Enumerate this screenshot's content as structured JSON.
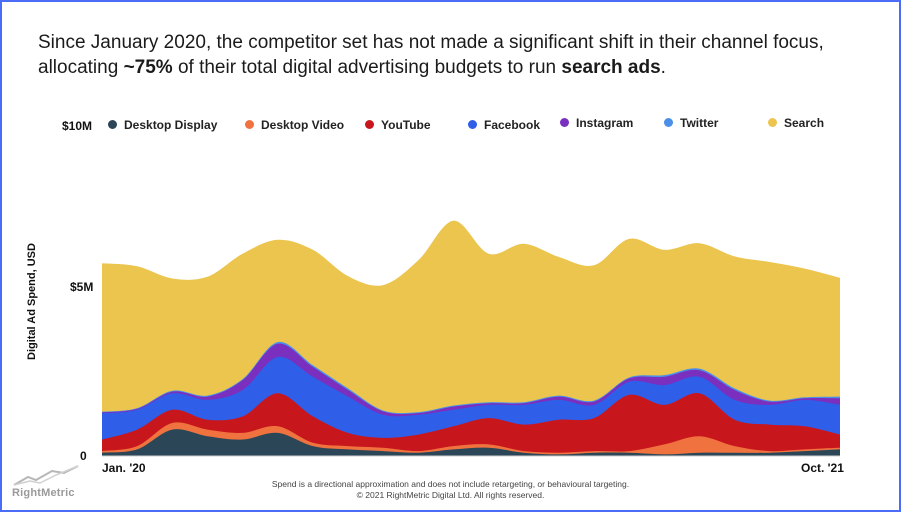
{
  "headline": {
    "part1": "Since January 2020, the competitor set has not made a significant shift in their channel focus, allocating ",
    "bold1": "~75%",
    "part2": " of their total digital advertising budgets to run ",
    "bold2": "search ads",
    "part3": "."
  },
  "footer": {
    "note": "Spend is a directional approximation and does not include retargeting, or behavioural targeting.",
    "copyright": "© 2021 RightMetric Digital Ltd. All rights reserved."
  },
  "brand": {
    "name": "RightMetric"
  },
  "chart_data": {
    "type": "area",
    "stacked": true,
    "smooth": true,
    "ylabel": "Digital Ad Spend, USD",
    "y_ticks": [
      "0",
      "$5M",
      "$10M"
    ],
    "y_tick_values": [
      0,
      5,
      10
    ],
    "ylim": [
      0,
      10
    ],
    "y_unit": "$M",
    "x_tick_labels": [
      "Jan. '20",
      "Oct. '21"
    ],
    "x": [
      "2020-01",
      "2020-02",
      "2020-03",
      "2020-04",
      "2020-05",
      "2020-06",
      "2020-07",
      "2020-08",
      "2020-09",
      "2020-10",
      "2020-11",
      "2020-12",
      "2021-01",
      "2021-02",
      "2021-03",
      "2021-04",
      "2021-05",
      "2021-06",
      "2021-07",
      "2021-08",
      "2021-09",
      "2021-10"
    ],
    "legend_position": "top",
    "series": [
      {
        "name": "Desktop Display",
        "color": "#2b4657",
        "values": [
          0.1,
          0.2,
          0.8,
          0.6,
          0.5,
          0.7,
          0.3,
          0.2,
          0.15,
          0.1,
          0.2,
          0.25,
          0.1,
          0.05,
          0.1,
          0.1,
          0.05,
          0.1,
          0.1,
          0.1,
          0.15,
          0.2
        ]
      },
      {
        "name": "Desktop Video",
        "color": "#f0733f",
        "values": [
          0.05,
          0.1,
          0.2,
          0.2,
          0.2,
          0.2,
          0.1,
          0.1,
          0.1,
          0.05,
          0.1,
          0.1,
          0.05,
          0.05,
          0.05,
          0.05,
          0.3,
          0.5,
          0.2,
          0.05,
          0.05,
          0.05
        ]
      },
      {
        "name": "YouTube",
        "color": "#c8161d",
        "values": [
          0.35,
          0.5,
          0.4,
          0.3,
          0.5,
          1.0,
          0.8,
          0.4,
          0.3,
          0.5,
          0.6,
          0.8,
          0.8,
          1.0,
          1.0,
          1.7,
          1.2,
          1.3,
          0.8,
          0.8,
          0.7,
          0.4
        ]
      },
      {
        "name": "Facebook",
        "color": "#2f5ee8",
        "values": [
          0.8,
          0.6,
          0.5,
          0.6,
          0.8,
          1.1,
          1.2,
          1.1,
          0.7,
          0.6,
          0.5,
          0.4,
          0.6,
          0.6,
          0.4,
          0.4,
          0.6,
          0.5,
          0.6,
          0.6,
          0.8,
          0.9
        ]
      },
      {
        "name": "Instagram",
        "color": "#7a2fbf",
        "values": [
          0.02,
          0.03,
          0.05,
          0.1,
          0.3,
          0.4,
          0.3,
          0.2,
          0.1,
          0.05,
          0.1,
          0.05,
          0.05,
          0.1,
          0.1,
          0.1,
          0.25,
          0.2,
          0.3,
          0.1,
          0.05,
          0.2
        ]
      },
      {
        "name": "Twitter",
        "color": "#4a8fe8",
        "values": [
          0.02,
          0.02,
          0.03,
          0.03,
          0.03,
          0.05,
          0.05,
          0.05,
          0.03,
          0.03,
          0.03,
          0.03,
          0.03,
          0.03,
          0.03,
          0.03,
          0.05,
          0.05,
          0.05,
          0.03,
          0.03,
          0.05
        ]
      },
      {
        "name": "Search",
        "color": "#ecc54f",
        "values": [
          4.5,
          4.3,
          3.4,
          3.6,
          3.8,
          3.1,
          3.5,
          3.4,
          3.8,
          4.6,
          5.6,
          4.5,
          4.8,
          4.2,
          4.1,
          4.2,
          3.8,
          3.8,
          4.0,
          4.2,
          3.9,
          3.6
        ]
      }
    ]
  }
}
